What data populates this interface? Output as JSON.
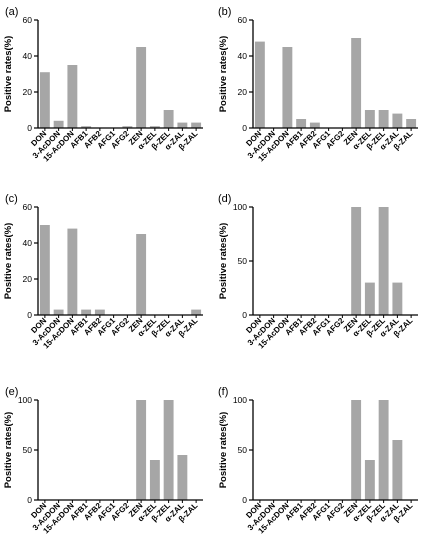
{
  "chart_data": [
    {
      "panel": "(a)",
      "type": "bar",
      "categories": [
        "DON",
        "3-AcDON",
        "15-AcDON",
        "AFB1",
        "AFB2",
        "AFG1",
        "AFG2",
        "ZEN",
        "α-ZEL",
        "β-ZEL",
        "α-ZAL",
        "β-ZAL"
      ],
      "values": [
        31,
        4,
        35,
        1,
        0,
        0,
        1,
        45,
        1,
        10,
        3,
        3
      ],
      "ylabel": "Positive rates(%)",
      "ylim": [
        0,
        60
      ],
      "yticks": [
        0,
        20,
        40,
        60
      ],
      "bar_color": "#a6a6a6"
    },
    {
      "panel": "(b)",
      "type": "bar",
      "categories": [
        "DON",
        "3-AcDON",
        "15-AcDON",
        "AFB1",
        "AFB2",
        "AFG1",
        "AFG2",
        "ZEN",
        "α-ZEL",
        "β-ZEL",
        "α-ZAL",
        "β-ZAL"
      ],
      "values": [
        48,
        0,
        45,
        5,
        3,
        0,
        0,
        50,
        10,
        10,
        8,
        5
      ],
      "ylabel": "Positive rates(%)",
      "ylim": [
        0,
        60
      ],
      "yticks": [
        0,
        20,
        40,
        60
      ],
      "bar_color": "#a6a6a6"
    },
    {
      "panel": "(c)",
      "type": "bar",
      "categories": [
        "DON",
        "3-AcDON",
        "15-AcDON",
        "AFB1",
        "AFB2",
        "AFG1",
        "AFG2",
        "ZEN",
        "α-ZEL",
        "β-ZEL",
        "α-ZAL",
        "β-ZAL"
      ],
      "values": [
        50,
        3,
        48,
        3,
        3,
        0,
        0,
        45,
        0,
        0,
        0,
        3
      ],
      "ylabel": "Positive rates(%)",
      "ylim": [
        0,
        60
      ],
      "yticks": [
        0,
        20,
        40,
        60
      ],
      "bar_color": "#a6a6a6"
    },
    {
      "panel": "(d)",
      "type": "bar",
      "categories": [
        "DON",
        "3-AcDON",
        "15-AcDON",
        "AFB1",
        "AFB2",
        "AFG1",
        "AFG2",
        "ZEN",
        "α-ZEL",
        "β-ZEL",
        "α-ZAL",
        "β-ZAL"
      ],
      "values": [
        0,
        0,
        0,
        0,
        0,
        0,
        0,
        100,
        30,
        100,
        30,
        0
      ],
      "ylabel": "Positive rates(%)",
      "ylim": [
        0,
        100
      ],
      "yticks": [
        0,
        50,
        100
      ],
      "bar_color": "#a6a6a6"
    },
    {
      "panel": "(e)",
      "type": "bar",
      "categories": [
        "DON",
        "3-AcDON",
        "15-AcDON",
        "AFB1",
        "AFB2",
        "AFG1",
        "AFG2",
        "ZEN",
        "α-ZEL",
        "β-ZEL",
        "α-ZAL",
        "β-ZAL"
      ],
      "values": [
        0,
        0,
        0,
        0,
        0,
        0,
        0,
        100,
        40,
        100,
        45,
        0
      ],
      "ylabel": "Positive rates(%)",
      "ylim": [
        0,
        100
      ],
      "yticks": [
        0,
        50,
        100
      ],
      "bar_color": "#a6a6a6"
    },
    {
      "panel": "(f)",
      "type": "bar",
      "categories": [
        "DON",
        "3-AcDON",
        "15-AcDON",
        "AFB1",
        "AFB2",
        "AFG1",
        "AFG2",
        "ZEN",
        "α-ZEL",
        "β-ZEL",
        "α-ZAL",
        "β-ZAL"
      ],
      "values": [
        0,
        0,
        0,
        0,
        0,
        0,
        0,
        100,
        40,
        100,
        60,
        0
      ],
      "ylabel": "Positive rates(%)",
      "ylim": [
        0,
        100
      ],
      "yticks": [
        0,
        50,
        100
      ],
      "bar_color": "#a6a6a6"
    }
  ]
}
